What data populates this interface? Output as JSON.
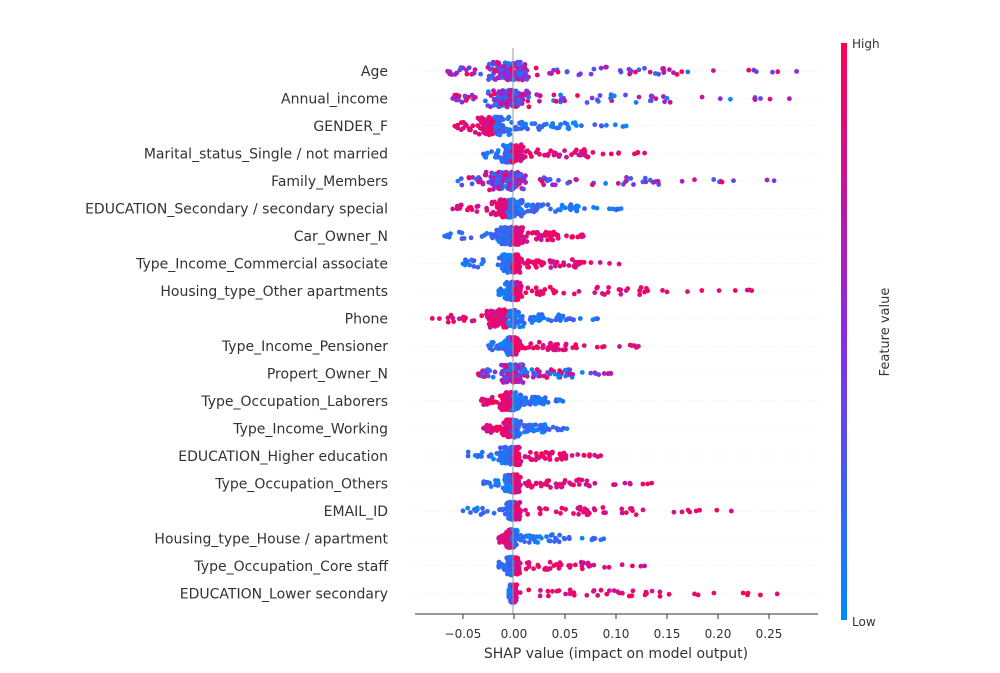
{
  "chart_data": {
    "type": "scatter",
    "subtype": "shap-beeswarm",
    "title": "",
    "xlabel": "SHAP value (impact on model output)",
    "ylabel": "",
    "xlim": [
      -0.097,
      0.298
    ],
    "xticks": [
      -0.05,
      0.0,
      0.05,
      0.1,
      0.15,
      0.2,
      0.25
    ],
    "xtick_labels": [
      "−0.05",
      "0.00",
      "0.05",
      "0.10",
      "0.15",
      "0.20",
      "0.25"
    ],
    "zero_line": 0.0,
    "grid": false,
    "colorbar": {
      "label": "Feature value",
      "high_label": "High",
      "low_label": "Low",
      "high_color": "#ff0052",
      "mid_color": "#8a2be2",
      "low_color": "#008bfb"
    },
    "features": [
      {
        "name": "Age",
        "value_range": [
          -0.065,
          0.277
        ],
        "core": [
          -0.03,
          0.02
        ],
        "high_side": "mixed"
      },
      {
        "name": "Annual_income",
        "value_range": [
          -0.06,
          0.27
        ],
        "core": [
          -0.028,
          0.02
        ],
        "high_side": "mixed"
      },
      {
        "name": "GENDER_F",
        "value_range": [
          -0.058,
          0.11
        ],
        "core": [
          -0.04,
          0.0
        ],
        "high_side": "negative"
      },
      {
        "name": "Marital_status_Single / not married",
        "value_range": [
          -0.03,
          0.128
        ],
        "core": [
          -0.015,
          0.01
        ],
        "high_side": "positive"
      },
      {
        "name": "Family_Members",
        "value_range": [
          -0.055,
          0.255
        ],
        "core": [
          -0.03,
          0.015
        ],
        "high_side": "mixed"
      },
      {
        "name": "EDUCATION_Secondary / secondary special",
        "value_range": [
          -0.06,
          0.105
        ],
        "core": [
          -0.025,
          0.012
        ],
        "high_side": "negative"
      },
      {
        "name": "Car_Owner_N",
        "value_range": [
          -0.068,
          0.068
        ],
        "core": [
          -0.02,
          0.015
        ],
        "high_side": "positive"
      },
      {
        "name": "Type_Income_Commercial associate",
        "value_range": [
          -0.05,
          0.103
        ],
        "core": [
          -0.015,
          0.01
        ],
        "high_side": "positive"
      },
      {
        "name": "Housing_type_Other apartments",
        "value_range": [
          -0.015,
          0.233
        ],
        "core": [
          -0.01,
          0.008
        ],
        "high_side": "positive"
      },
      {
        "name": "Phone",
        "value_range": [
          -0.08,
          0.082
        ],
        "core": [
          -0.03,
          0.015
        ],
        "high_side": "negative"
      },
      {
        "name": "Type_Income_Pensioner",
        "value_range": [
          -0.025,
          0.122
        ],
        "core": [
          -0.012,
          0.008
        ],
        "high_side": "positive"
      },
      {
        "name": "Propert_Owner_N",
        "value_range": [
          -0.035,
          0.095
        ],
        "core": [
          -0.015,
          0.012
        ],
        "high_side": "mixed"
      },
      {
        "name": "Type_Occupation_Laborers",
        "value_range": [
          -0.032,
          0.048
        ],
        "core": [
          -0.015,
          0.01
        ],
        "high_side": "negative"
      },
      {
        "name": "Type_Income_Working",
        "value_range": [
          -0.03,
          0.052
        ],
        "core": [
          -0.012,
          0.008
        ],
        "high_side": "negative"
      },
      {
        "name": "EDUCATION_Higher education",
        "value_range": [
          -0.045,
          0.085
        ],
        "core": [
          -0.015,
          0.01
        ],
        "high_side": "positive"
      },
      {
        "name": "Type_Occupation_Others",
        "value_range": [
          -0.03,
          0.135
        ],
        "core": [
          -0.012,
          0.008
        ],
        "high_side": "positive"
      },
      {
        "name": "EMAIL_ID",
        "value_range": [
          -0.05,
          0.213
        ],
        "core": [
          -0.01,
          0.008
        ],
        "high_side": "positive"
      },
      {
        "name": "Housing_type_House / apartment",
        "value_range": [
          -0.015,
          0.088
        ],
        "core": [
          -0.008,
          0.004
        ],
        "high_side": "negative"
      },
      {
        "name": "Type_Occupation_Core staff",
        "value_range": [
          -0.015,
          0.128
        ],
        "core": [
          -0.008,
          0.006
        ],
        "high_side": "positive"
      },
      {
        "name": "EDUCATION_Lower secondary",
        "value_range": [
          -0.005,
          0.258
        ],
        "core": [
          -0.005,
          0.003
        ],
        "high_side": "positive"
      }
    ]
  }
}
